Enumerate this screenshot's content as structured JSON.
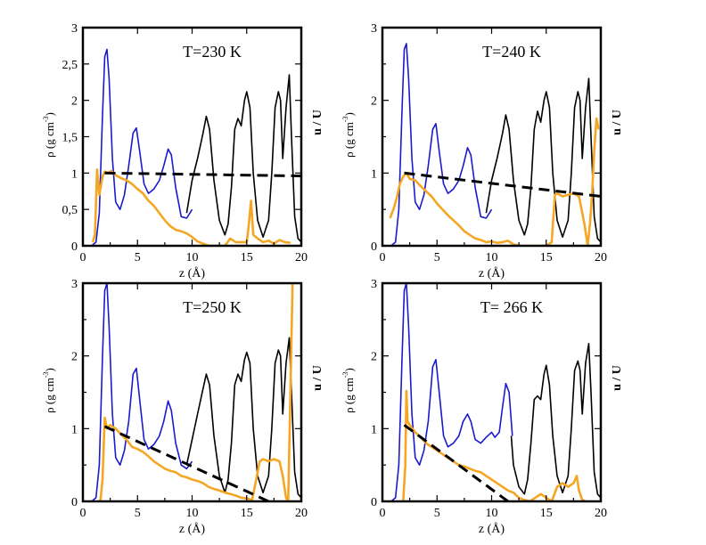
{
  "chart_data": [
    {
      "type": "line",
      "title": "T=230 K",
      "xlabel": "z (Å)",
      "ylabel": "ρ (g cm-3)",
      "ylabel_main": "ρ (g cm",
      "ylabel_exp": "-3",
      "ylabel_close": ")",
      "y2label": "u / U",
      "xlim": [
        0,
        20
      ],
      "ylim": [
        0,
        3
      ],
      "xticks": [
        0,
        5,
        10,
        15,
        20
      ],
      "xtick_labels": [
        "0",
        "5",
        "10",
        "15",
        "20"
      ],
      "yticks": [
        0,
        0.5,
        1,
        1.5,
        2,
        2.5,
        3
      ],
      "ytick_labels": [
        "0",
        "0,5",
        "1",
        "1,5",
        "2",
        "2,5",
        "3"
      ],
      "series": [
        {
          "name": "density-black",
          "color": "#000000",
          "style": "solid",
          "x": [
            9.5,
            10,
            10.5,
            11,
            11.3,
            11.6,
            12,
            12.5,
            13,
            13.3,
            13.6,
            13.9,
            14.2,
            14.5,
            14.8,
            15,
            15.3,
            15.6,
            16,
            16.5,
            17,
            17.3,
            17.6,
            17.9,
            18.1,
            18.3,
            18.6,
            18.9,
            19.1,
            19.4,
            19.7,
            20
          ],
          "y": [
            0.45,
            0.9,
            1.2,
            1.55,
            1.78,
            1.6,
            0.9,
            0.35,
            0.15,
            0.3,
            0.8,
            1.6,
            1.75,
            1.65,
            2.0,
            2.12,
            1.9,
            1.0,
            0.35,
            0.12,
            0.35,
            1.0,
            1.9,
            2.12,
            2.0,
            1.2,
            1.9,
            2.35,
            1.5,
            0.4,
            0.1,
            0.05
          ]
        },
        {
          "name": "density-blue",
          "color": "#1a1acc",
          "style": "solid",
          "x": [
            0.8,
            1.2,
            1.5,
            1.8,
            2.0,
            2.2,
            2.4,
            2.7,
            3.0,
            3.4,
            3.8,
            4.2,
            4.6,
            4.9,
            5.2,
            5.6,
            6.0,
            6.5,
            7.0,
            7.4,
            7.8,
            8.1,
            8.5,
            9.0,
            9.5,
            10.0
          ],
          "y": [
            0.0,
            0.05,
            0.45,
            1.8,
            2.6,
            2.7,
            2.3,
            1.2,
            0.6,
            0.5,
            0.7,
            1.1,
            1.55,
            1.62,
            1.3,
            0.85,
            0.72,
            0.78,
            0.9,
            1.1,
            1.33,
            1.25,
            0.8,
            0.4,
            0.38,
            0.5
          ]
        },
        {
          "name": "velocity-orange",
          "color": "#f5a623",
          "style": "solid",
          "x": [
            0.9,
            1.1,
            1.3,
            1.5,
            1.8,
            2.0,
            2.3,
            2.6,
            3.0,
            3.5,
            4.0,
            4.5,
            5.0,
            5.5,
            6.0,
            6.5,
            7.0,
            7.5,
            8.0,
            8.5,
            9.0,
            9.5,
            10.0,
            10.5,
            11.0,
            11.5,
            12.0,
            12.5,
            13.0,
            13.5,
            14.0,
            14.5,
            15.0,
            15.2,
            15.4,
            15.6,
            16.0,
            16.5,
            17.0,
            17.5,
            18.0,
            18.5,
            19.0
          ],
          "y": [
            0.05,
            0.15,
            1.05,
            0.7,
            0.95,
            1.02,
            1.0,
            1.03,
            0.97,
            0.93,
            0.9,
            0.85,
            0.78,
            0.72,
            0.62,
            0.55,
            0.45,
            0.35,
            0.27,
            0.22,
            0.2,
            0.17,
            0.12,
            0.06,
            0.03,
            0.0,
            0.0,
            0.0,
            0.0,
            0.1,
            0.05,
            0.05,
            0.05,
            0.3,
            0.62,
            0.15,
            0.1,
            0.05,
            0.07,
            0.03,
            0.08,
            0.05,
            0.04
          ]
        },
        {
          "name": "linear-fit-dashed",
          "color": "#000000",
          "style": "dashed",
          "x": [
            2.0,
            20.0
          ],
          "y": [
            1.0,
            0.96
          ]
        }
      ]
    },
    {
      "type": "line",
      "title": "T=240 K",
      "xlabel": "z (Å)",
      "ylabel": "ρ (g cm-3)",
      "ylabel_main": "ρ (g cm",
      "ylabel_exp": "-3",
      "ylabel_close": ")",
      "y2label": "u / U",
      "xlim": [
        0,
        20
      ],
      "ylim": [
        0,
        3
      ],
      "xticks": [
        0,
        5,
        10,
        15,
        20
      ],
      "xtick_labels": [
        "0",
        "5",
        "10",
        "15",
        "20"
      ],
      "yticks": [
        0,
        1,
        2,
        3
      ],
      "ytick_labels": [
        "0",
        "1",
        "2",
        "3"
      ],
      "series": [
        {
          "name": "density-black",
          "color": "#000000",
          "style": "solid",
          "x": [
            9.5,
            10,
            10.5,
            11,
            11.3,
            11.6,
            12,
            12.5,
            13,
            13.3,
            13.6,
            13.9,
            14.2,
            14.5,
            14.8,
            15,
            15.3,
            15.6,
            16,
            16.5,
            17,
            17.3,
            17.6,
            17.9,
            18.1,
            18.3,
            18.6,
            18.9,
            19.1,
            19.4,
            19.7,
            20
          ],
          "y": [
            0.45,
            0.9,
            1.2,
            1.55,
            1.8,
            1.6,
            0.9,
            0.35,
            0.15,
            0.3,
            0.8,
            1.6,
            1.85,
            1.7,
            2.0,
            2.12,
            1.9,
            1.0,
            0.35,
            0.12,
            0.35,
            1.0,
            1.9,
            2.12,
            2.0,
            1.2,
            1.9,
            2.3,
            1.5,
            0.4,
            0.1,
            0.05
          ]
        },
        {
          "name": "density-blue",
          "color": "#1a1acc",
          "style": "solid",
          "x": [
            0.8,
            1.2,
            1.5,
            1.8,
            2.0,
            2.2,
            2.4,
            2.7,
            3.0,
            3.4,
            3.8,
            4.2,
            4.6,
            4.9,
            5.2,
            5.6,
            6.0,
            6.5,
            7.0,
            7.4,
            7.8,
            8.1,
            8.5,
            9.0,
            9.5,
            10.0
          ],
          "y": [
            0.0,
            0.05,
            0.5,
            1.9,
            2.7,
            2.78,
            2.3,
            1.2,
            0.6,
            0.5,
            0.7,
            1.1,
            1.6,
            1.68,
            1.3,
            0.85,
            0.72,
            0.78,
            0.9,
            1.1,
            1.35,
            1.25,
            0.8,
            0.4,
            0.38,
            0.5
          ]
        },
        {
          "name": "velocity-orange",
          "color": "#f5a623",
          "style": "solid",
          "x": [
            0.7,
            1.0,
            1.3,
            1.6,
            1.9,
            2.2,
            2.5,
            3.0,
            3.5,
            4.0,
            4.5,
            5.0,
            5.5,
            6.0,
            6.5,
            7.0,
            7.5,
            8.0,
            8.5,
            9.0,
            9.5,
            10.0,
            10.5,
            11.0,
            11.5,
            12.0,
            12.5,
            13.0,
            14.0,
            15.0,
            15.5,
            15.8,
            16.0,
            16.5,
            17.0,
            17.5,
            18.0,
            18.5,
            18.8,
            19.0,
            19.2,
            19.4,
            19.6,
            19.8
          ],
          "y": [
            0.38,
            0.5,
            0.65,
            0.85,
            0.95,
            1.0,
            0.92,
            0.9,
            0.82,
            0.75,
            0.68,
            0.58,
            0.5,
            0.42,
            0.35,
            0.28,
            0.2,
            0.15,
            0.1,
            0.08,
            0.05,
            0.06,
            0.04,
            0.05,
            0.07,
            0.02,
            0.0,
            0.0,
            0.0,
            0.0,
            0.05,
            0.7,
            0.72,
            0.68,
            0.7,
            0.72,
            0.68,
            0.3,
            0.0,
            0.3,
            0.7,
            1.3,
            1.75,
            1.6
          ]
        },
        {
          "name": "linear-fit-dashed",
          "color": "#000000",
          "style": "dashed",
          "x": [
            2.0,
            20.0
          ],
          "y": [
            1.0,
            0.68
          ]
        }
      ]
    },
    {
      "type": "line",
      "title": "T=250 K",
      "xlabel": "z (Å)",
      "ylabel": "ρ (g cm-3)",
      "ylabel_main": "ρ (g cm",
      "ylabel_exp": "-3",
      "ylabel_close": ")",
      "y2label": "u / U",
      "xlim": [
        0,
        20
      ],
      "ylim": [
        0,
        3
      ],
      "xticks": [
        0,
        5,
        10,
        15,
        20
      ],
      "xtick_labels": [
        "0",
        "5",
        "10",
        "15",
        "20"
      ],
      "yticks": [
        0,
        1,
        2,
        3
      ],
      "ytick_labels": [
        "0",
        "1",
        "2",
        "3"
      ],
      "series": [
        {
          "name": "density-black",
          "color": "#000000",
          "style": "solid",
          "x": [
            9.5,
            10,
            10.5,
            11,
            11.3,
            11.6,
            12,
            12.5,
            13,
            13.3,
            13.6,
            13.9,
            14.2,
            14.5,
            14.8,
            15,
            15.3,
            15.6,
            16,
            16.5,
            17,
            17.3,
            17.6,
            17.9,
            18.1,
            18.3,
            18.6,
            18.9,
            19.1,
            19.4,
            19.7,
            20
          ],
          "y": [
            0.5,
            0.85,
            1.2,
            1.55,
            1.75,
            1.6,
            0.9,
            0.35,
            0.12,
            0.3,
            0.8,
            1.6,
            1.75,
            1.65,
            1.95,
            2.05,
            1.9,
            1.0,
            0.35,
            0.12,
            0.35,
            1.0,
            1.9,
            2.08,
            2.0,
            1.2,
            1.9,
            2.25,
            1.5,
            0.4,
            0.1,
            0.05
          ]
        },
        {
          "name": "density-blue",
          "color": "#1a1acc",
          "style": "solid",
          "x": [
            0.8,
            1.2,
            1.5,
            1.8,
            2.0,
            2.2,
            2.4,
            2.7,
            3.0,
            3.4,
            3.8,
            4.2,
            4.6,
            4.9,
            5.2,
            5.6,
            6.0,
            6.5,
            7.0,
            7.4,
            7.8,
            8.1,
            8.5,
            9.0,
            9.5,
            10.0
          ],
          "y": [
            0.0,
            0.05,
            0.5,
            2.0,
            2.9,
            3.0,
            2.4,
            1.2,
            0.6,
            0.5,
            0.7,
            1.1,
            1.75,
            1.83,
            1.4,
            0.85,
            0.72,
            0.78,
            0.9,
            1.1,
            1.38,
            1.25,
            0.8,
            0.5,
            0.45,
            0.55
          ]
        },
        {
          "name": "velocity-orange",
          "color": "#f5a623",
          "style": "solid",
          "x": [
            1.6,
            1.8,
            2.0,
            2.2,
            2.5,
            3.0,
            3.5,
            4.0,
            4.5,
            5.0,
            5.5,
            6.0,
            6.5,
            7.0,
            7.5,
            8.0,
            8.5,
            9.0,
            9.5,
            10.0,
            10.5,
            11.0,
            11.5,
            12.0,
            12.5,
            13.0,
            13.5,
            14.0,
            14.5,
            15.0,
            15.5,
            16.0,
            16.2,
            16.5,
            17.0,
            17.5,
            18.0,
            18.3,
            18.6,
            18.8,
            19.0,
            19.2
          ],
          "y": [
            0.0,
            0.3,
            1.15,
            1.0,
            1.05,
            1.0,
            0.92,
            0.85,
            0.75,
            0.72,
            0.68,
            0.62,
            0.55,
            0.5,
            0.45,
            0.42,
            0.4,
            0.35,
            0.33,
            0.3,
            0.28,
            0.25,
            0.2,
            0.17,
            0.15,
            0.12,
            0.1,
            0.08,
            0.05,
            0.04,
            0.02,
            0.4,
            0.55,
            0.58,
            0.55,
            0.58,
            0.55,
            0.35,
            0.05,
            0.0,
            1.5,
            3.0
          ]
        },
        {
          "name": "linear-fit-dashed",
          "color": "#000000",
          "style": "dashed",
          "x": [
            2.0,
            17.0
          ],
          "y": [
            1.03,
            0.0
          ]
        }
      ]
    },
    {
      "type": "line",
      "title": "T= 266 K",
      "xlabel": "z (Å)",
      "ylabel": "ρ (g cm-3)",
      "ylabel_main": "ρ (g cm",
      "ylabel_exp": "-3",
      "ylabel_close": ")",
      "y2label": "u / U",
      "xlim": [
        0,
        20
      ],
      "ylim": [
        0,
        3
      ],
      "xticks": [
        0,
        5,
        10,
        15,
        20
      ],
      "xtick_labels": [
        "0",
        "5",
        "10",
        "15",
        "20"
      ],
      "yticks": [
        0,
        1,
        2,
        3
      ],
      "ytick_labels": [
        "0",
        "1",
        "2",
        "3"
      ],
      "series": [
        {
          "name": "density-black",
          "color": "#000000",
          "style": "solid",
          "x": [
            11.8,
            12,
            12.5,
            13,
            13.3,
            13.6,
            13.9,
            14.2,
            14.5,
            14.8,
            15,
            15.3,
            15.6,
            16,
            16.5,
            17,
            17.3,
            17.6,
            17.9,
            18.1,
            18.3,
            18.6,
            18.9,
            19.1,
            19.4,
            19.7,
            20
          ],
          "y": [
            0.9,
            0.5,
            0.2,
            0.1,
            0.3,
            0.8,
            1.4,
            1.45,
            1.4,
            1.75,
            1.87,
            1.6,
            0.9,
            0.35,
            0.12,
            0.35,
            1.0,
            1.8,
            1.93,
            1.8,
            1.2,
            1.9,
            2.17,
            1.5,
            0.4,
            0.1,
            0.05
          ]
        },
        {
          "name": "density-blue",
          "color": "#1a1acc",
          "style": "solid",
          "x": [
            0.8,
            1.2,
            1.5,
            1.8,
            2.0,
            2.2,
            2.4,
            2.7,
            3.0,
            3.4,
            3.8,
            4.2,
            4.6,
            4.9,
            5.2,
            5.6,
            6.0,
            6.5,
            7.0,
            7.4,
            7.8,
            8.1,
            8.5,
            9.0,
            9.5,
            10.0,
            10.3,
            10.7,
            11.0,
            11.3,
            11.6,
            11.9
          ],
          "y": [
            0.0,
            0.05,
            0.5,
            2.0,
            2.9,
            3.0,
            2.4,
            1.2,
            0.6,
            0.5,
            0.7,
            1.1,
            1.85,
            1.95,
            1.5,
            0.9,
            0.75,
            0.8,
            0.9,
            1.1,
            1.2,
            1.1,
            0.85,
            0.8,
            0.88,
            0.95,
            0.88,
            0.95,
            1.3,
            1.62,
            1.5,
            0.9
          ]
        },
        {
          "name": "velocity-orange",
          "color": "#f5a623",
          "style": "solid",
          "x": [
            1.9,
            2.1,
            2.2,
            2.3,
            2.5,
            3.0,
            3.5,
            4.0,
            4.5,
            5.0,
            5.5,
            6.0,
            6.5,
            7.0,
            7.5,
            8.0,
            8.5,
            9.0,
            9.5,
            10.0,
            10.5,
            11.0,
            11.5,
            12.0,
            12.5,
            13.0,
            13.5,
            14.0,
            14.5,
            15.0,
            15.5,
            16.0,
            16.5,
            17.0,
            17.5,
            17.8,
            18.0,
            18.3,
            18.6
          ],
          "y": [
            0.0,
            0.5,
            1.52,
            1.1,
            1.05,
            0.95,
            0.88,
            0.8,
            0.75,
            0.7,
            0.65,
            0.6,
            0.55,
            0.5,
            0.48,
            0.45,
            0.42,
            0.4,
            0.35,
            0.3,
            0.25,
            0.2,
            0.15,
            0.12,
            0.05,
            0.02,
            0.0,
            0.05,
            0.1,
            0.05,
            0.0,
            0.2,
            0.25,
            0.2,
            0.25,
            0.35,
            0.15,
            0.02,
            0.0
          ]
        },
        {
          "name": "linear-fit-dashed",
          "color": "#000000",
          "style": "dashed",
          "x": [
            2.0,
            11.5
          ],
          "y": [
            1.05,
            0.0
          ]
        }
      ]
    }
  ]
}
